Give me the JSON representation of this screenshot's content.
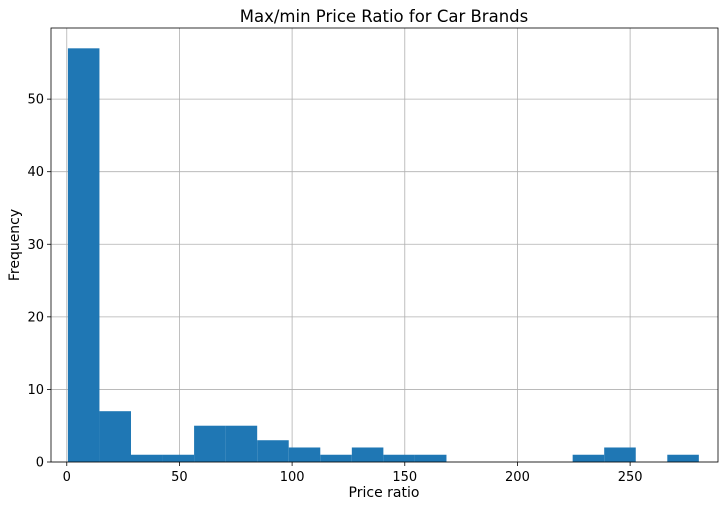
{
  "chart_data": {
    "type": "bar",
    "title": "Max/min Price Ratio for Car Brands",
    "xlabel": "Price ratio",
    "ylabel": "Frequency",
    "xlim": [
      -7,
      289
    ],
    "ylim": [
      0,
      59.8
    ],
    "grid": true,
    "bar_color": "#1f77b4",
    "xticks": [
      0,
      50,
      100,
      150,
      200,
      250
    ],
    "yticks": [
      0,
      10,
      20,
      30,
      40,
      50
    ],
    "bins": [
      {
        "x0": 0.5,
        "x1": 14.5,
        "value": 57
      },
      {
        "x0": 14.5,
        "x1": 28.5,
        "value": 7
      },
      {
        "x0": 28.5,
        "x1": 42.5,
        "value": 1
      },
      {
        "x0": 42.5,
        "x1": 56.5,
        "value": 1
      },
      {
        "x0": 56.5,
        "x1": 70.5,
        "value": 5
      },
      {
        "x0": 70.5,
        "x1": 84.5,
        "value": 5
      },
      {
        "x0": 84.5,
        "x1": 98.5,
        "value": 3
      },
      {
        "x0": 98.5,
        "x1": 112.5,
        "value": 2
      },
      {
        "x0": 112.5,
        "x1": 126.5,
        "value": 1
      },
      {
        "x0": 126.5,
        "x1": 140.5,
        "value": 2
      },
      {
        "x0": 140.5,
        "x1": 154.5,
        "value": 1
      },
      {
        "x0": 154.5,
        "x1": 168.5,
        "value": 1
      },
      {
        "x0": 168.5,
        "x1": 182.5,
        "value": 0
      },
      {
        "x0": 182.5,
        "x1": 196.5,
        "value": 0
      },
      {
        "x0": 196.5,
        "x1": 210.5,
        "value": 0
      },
      {
        "x0": 210.5,
        "x1": 224.5,
        "value": 0
      },
      {
        "x0": 224.5,
        "x1": 238.5,
        "value": 1
      },
      {
        "x0": 238.5,
        "x1": 252.5,
        "value": 2
      },
      {
        "x0": 252.5,
        "x1": 266.5,
        "value": 0
      },
      {
        "x0": 266.5,
        "x1": 280.5,
        "value": 1
      }
    ]
  }
}
